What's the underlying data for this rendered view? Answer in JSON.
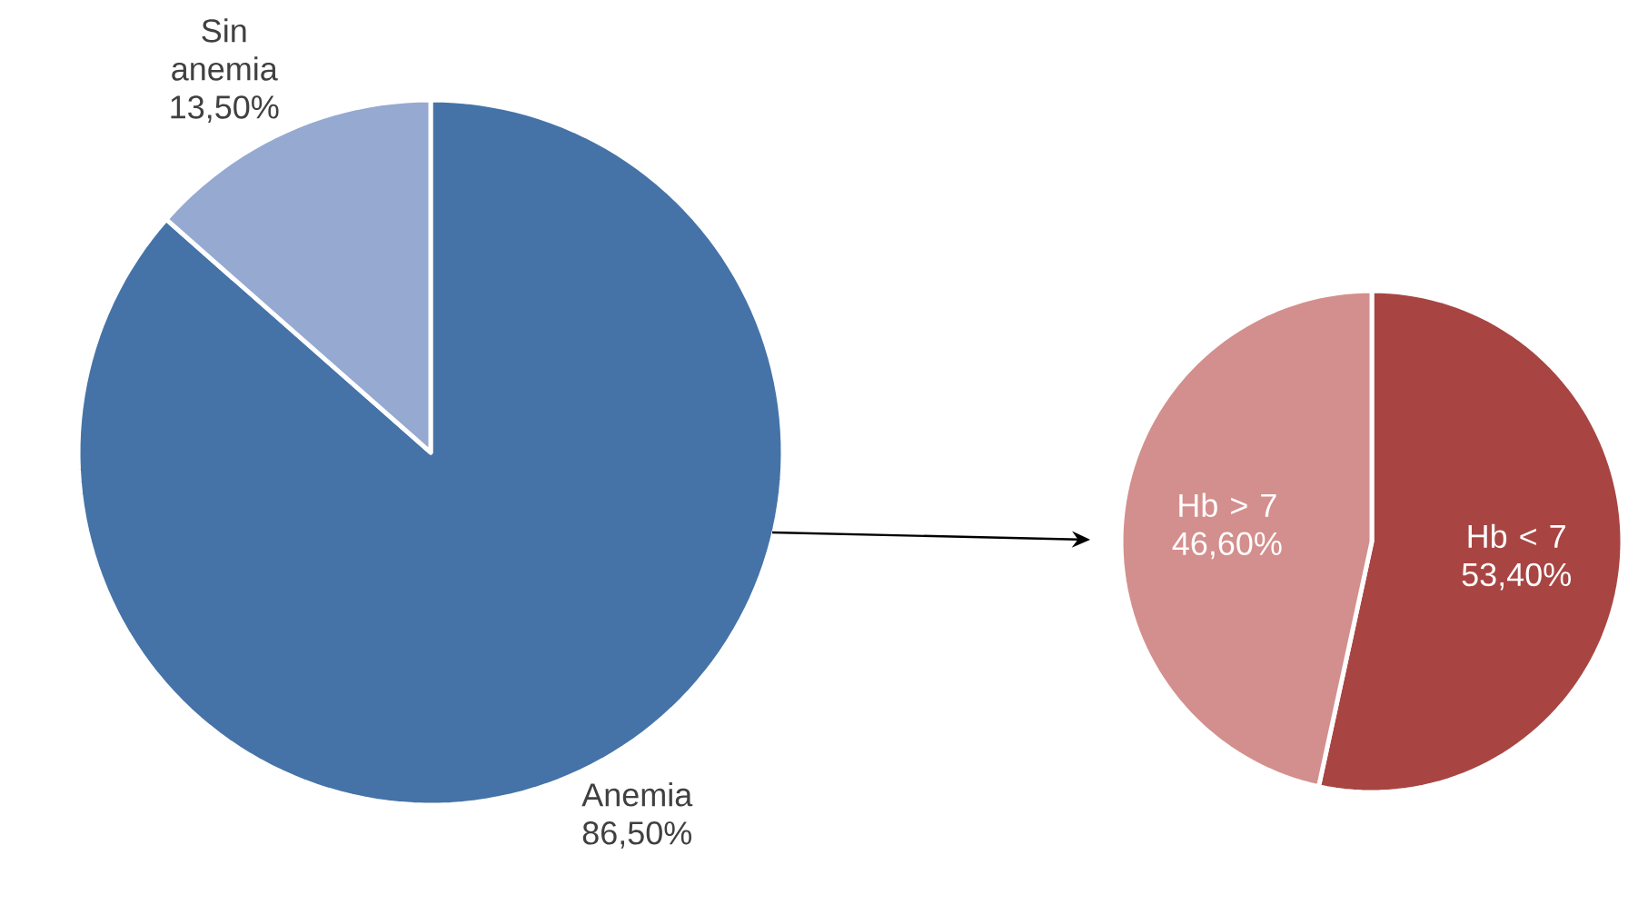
{
  "chart_data": [
    {
      "type": "pie",
      "categories": [
        "Anemia",
        "Sin anemia"
      ],
      "values": [
        86.5,
        13.5
      ],
      "colors": [
        "#4573a7",
        "#95a9d1"
      ],
      "value_labels": [
        "86,50%",
        "13,50%"
      ]
    },
    {
      "type": "pie",
      "categories": [
        "Hb < 7",
        "Hb > 7"
      ],
      "values": [
        53.4,
        46.6
      ],
      "colors": [
        "#a84542",
        "#d38f8d"
      ],
      "value_labels": [
        "53,40%",
        "46,60%"
      ]
    }
  ]
}
